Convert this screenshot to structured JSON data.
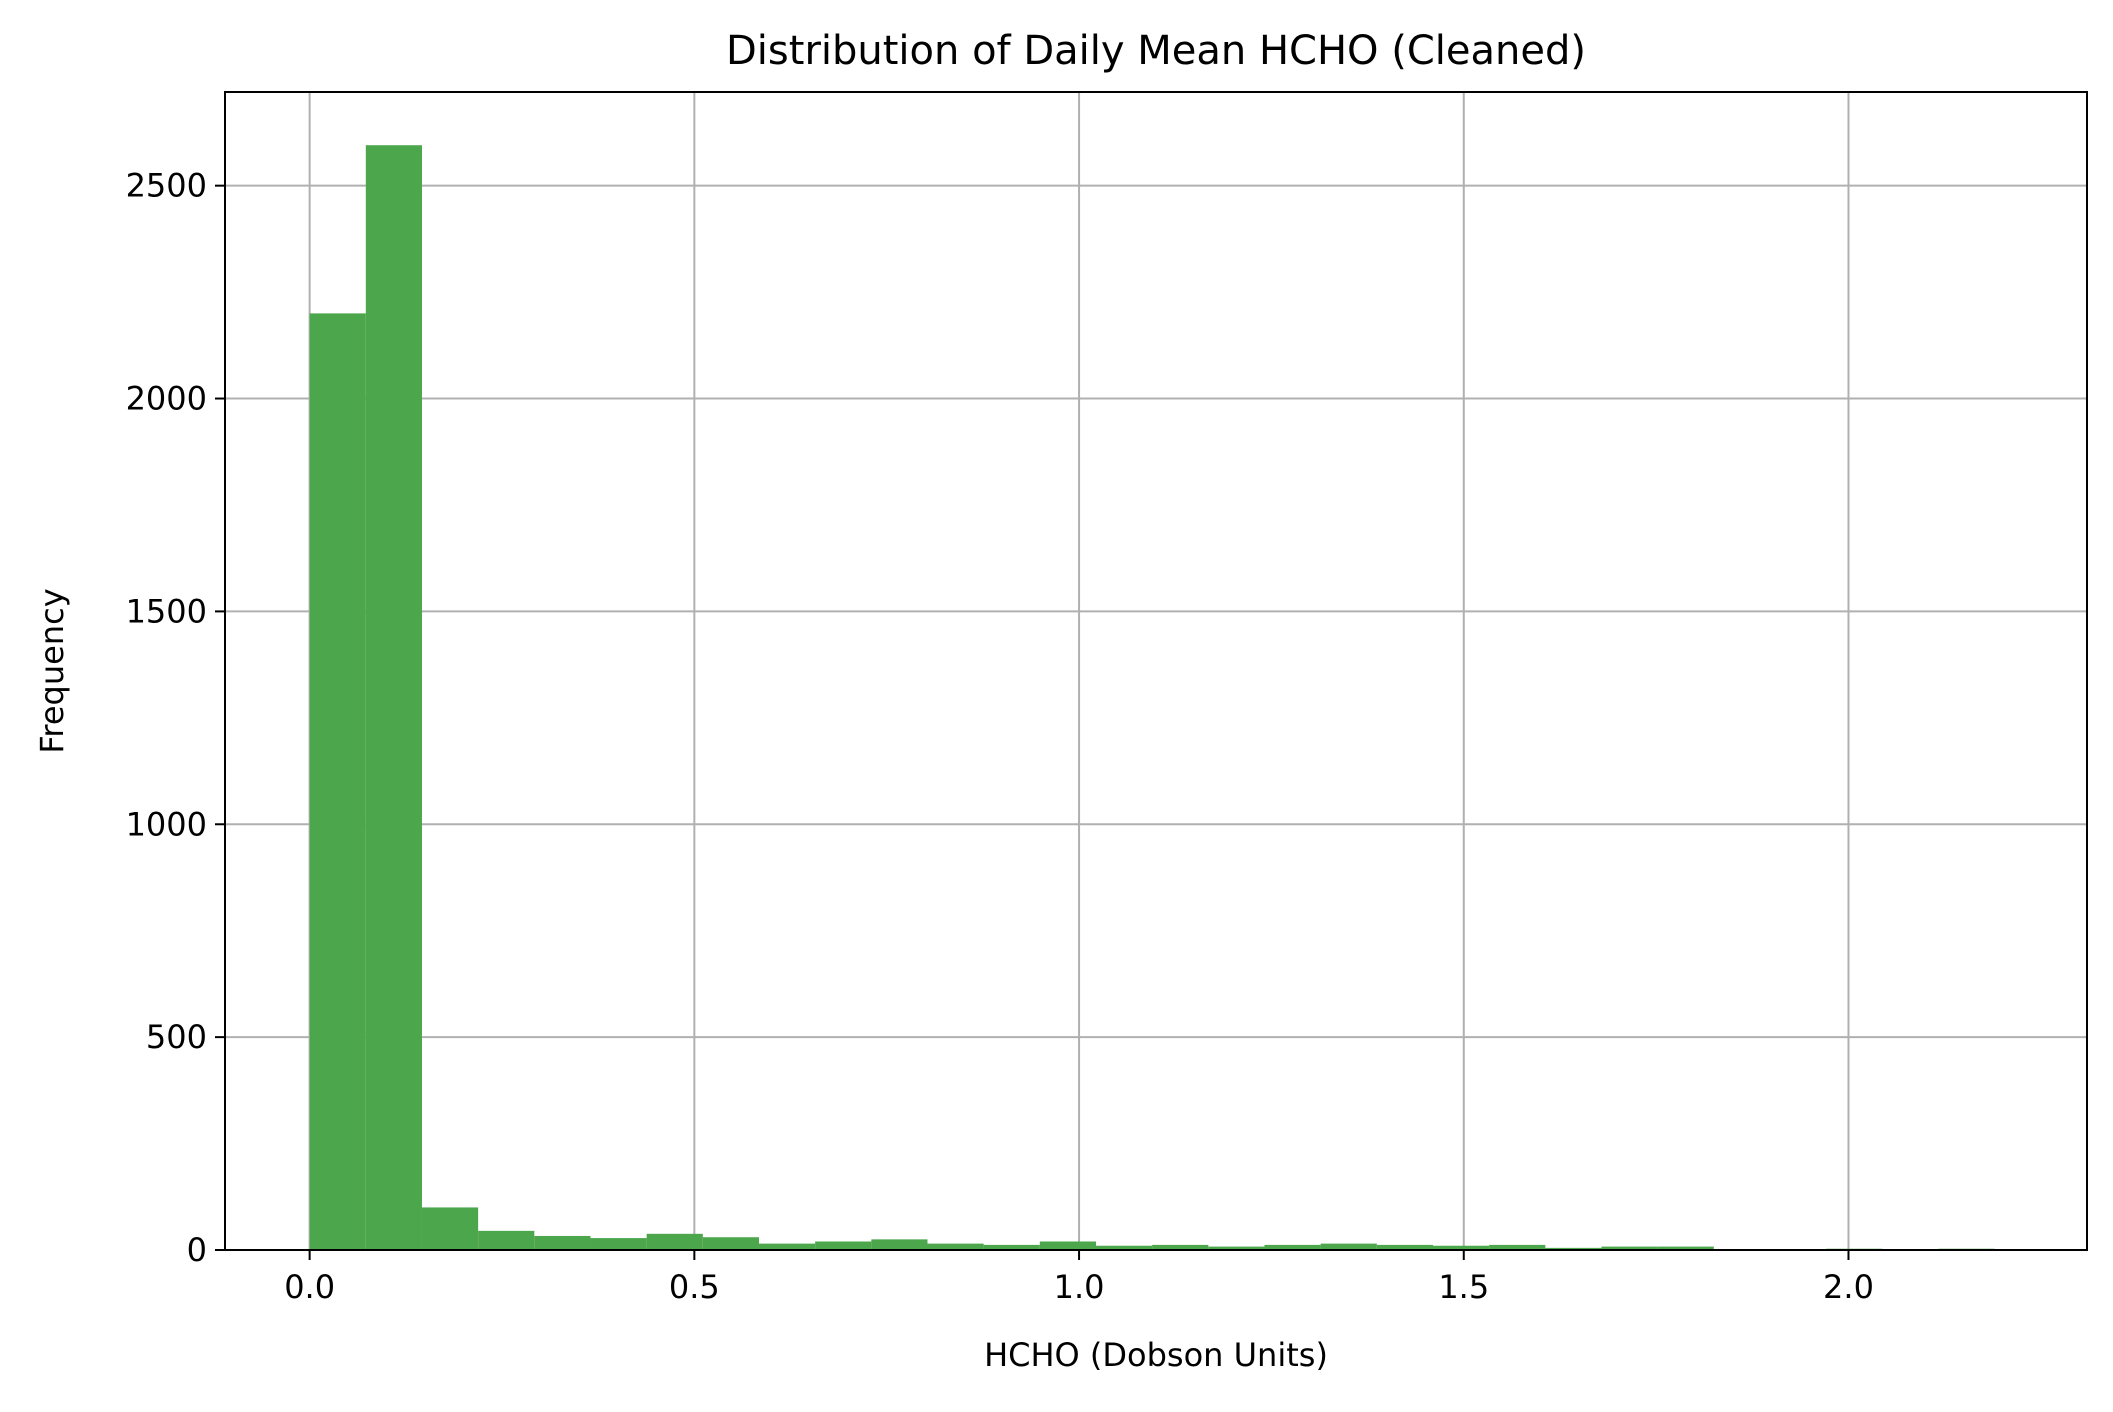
{
  "chart_data": {
    "type": "bar",
    "title": "Distribution of Daily Mean HCHO (Cleaned)",
    "xlabel": "HCHO (Dobson Units)",
    "ylabel": "Frequency",
    "xlim": [
      -0.11,
      2.31
    ],
    "ylim": [
      0,
      2720
    ],
    "x_ticks": [
      0.0,
      0.5,
      1.0,
      1.5,
      2.0
    ],
    "x_tick_labels": [
      "0.0",
      "0.5",
      "1.0",
      "1.5",
      "2.0"
    ],
    "y_ticks": [
      0,
      500,
      1000,
      1500,
      2000,
      2500
    ],
    "y_tick_labels": [
      "0",
      "500",
      "1000",
      "1500",
      "2000",
      "2500"
    ],
    "grid": true,
    "bar_color": "#4ca64c",
    "bin_edges": [
      0.0,
      0.073,
      0.146,
      0.219,
      0.292,
      0.365,
      0.438,
      0.511,
      0.584,
      0.657,
      0.73,
      0.803,
      0.876,
      0.949,
      1.022,
      1.095,
      1.168,
      1.241,
      1.314,
      1.387,
      1.46,
      1.533,
      1.606,
      1.679,
      1.752,
      1.825,
      1.898,
      1.971,
      2.044,
      2.117,
      2.19
    ],
    "values": [
      2200,
      2595,
      100,
      45,
      33,
      28,
      38,
      30,
      15,
      20,
      25,
      15,
      12,
      20,
      10,
      12,
      8,
      12,
      15,
      12,
      10,
      12,
      5,
      8,
      8,
      2,
      2,
      3,
      2,
      3
    ]
  }
}
